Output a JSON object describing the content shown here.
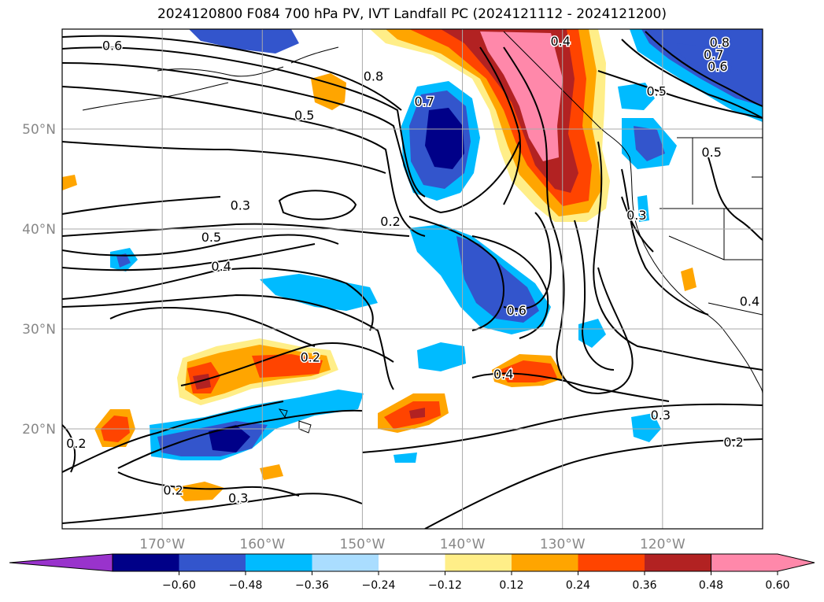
{
  "title": "2024120800 F084 700 hPa PV, IVT Landfall PC (2024121112 - 2024121200)",
  "map": {
    "projection": "equirectangular",
    "lon_range": [
      -180,
      -110
    ],
    "lat_range": [
      10,
      60
    ],
    "lon_ticks": [
      {
        "lon": -170,
        "label": "170°W"
      },
      {
        "lon": -160,
        "label": "160°W"
      },
      {
        "lon": -150,
        "label": "150°W"
      },
      {
        "lon": -140,
        "label": "140°W"
      },
      {
        "lon": -130,
        "label": "130°W"
      },
      {
        "lon": -120,
        "label": "120°W"
      }
    ],
    "lat_ticks": [
      {
        "lat": 20,
        "label": "20°N"
      },
      {
        "lat": 30,
        "label": "30°N"
      },
      {
        "lat": 40,
        "label": "40°N"
      },
      {
        "lat": 50,
        "label": "50°N"
      }
    ],
    "grid": true,
    "contour_labels": [
      {
        "text": "0.6",
        "lon": -175,
        "lat": 58.4
      },
      {
        "text": "0.8",
        "lon": -148.9,
        "lat": 55.3
      },
      {
        "text": "0.7",
        "lon": -143.8,
        "lat": 52.8
      },
      {
        "text": "0.5",
        "lon": -155.8,
        "lat": 51.4
      },
      {
        "text": "0.4",
        "lon": -130.2,
        "lat": 58.8
      },
      {
        "text": "0.8",
        "lon": -114.3,
        "lat": 58.7
      },
      {
        "text": "0.7",
        "lon": -114.9,
        "lat": 57.5
      },
      {
        "text": "0.6",
        "lon": -114.5,
        "lat": 56.3
      },
      {
        "text": "0.5",
        "lon": -120.6,
        "lat": 53.8
      },
      {
        "text": "0.5",
        "lon": -115.1,
        "lat": 47.7
      },
      {
        "text": "0.3",
        "lon": -122.6,
        "lat": 41.4
      },
      {
        "text": "0.3",
        "lon": -162.2,
        "lat": 42.4
      },
      {
        "text": "0.2",
        "lon": -147.2,
        "lat": 40.8
      },
      {
        "text": "0.5",
        "lon": -165.1,
        "lat": 39.2
      },
      {
        "text": "0.4",
        "lon": -164.1,
        "lat": 36.3
      },
      {
        "text": "0.6",
        "lon": -134.6,
        "lat": 31.9
      },
      {
        "text": "0.2",
        "lon": -155.2,
        "lat": 27.2
      },
      {
        "text": "0.4",
        "lon": -135.9,
        "lat": 25.5
      },
      {
        "text": "0.3",
        "lon": -120.2,
        "lat": 21.4
      },
      {
        "text": "0.2",
        "lon": -112.9,
        "lat": 18.7
      },
      {
        "text": "0.2",
        "lon": -178.6,
        "lat": 18.6
      },
      {
        "text": "0.2",
        "lon": -168.9,
        "lat": 13.9
      },
      {
        "text": "0.3",
        "lon": -162.4,
        "lat": 13.1
      },
      {
        "text": "0.4",
        "lon": -111.3,
        "lat": 32.8
      }
    ]
  },
  "colorbar": {
    "ticks": [
      "−0.60",
      "−0.48",
      "−0.36",
      "−0.24",
      "−0.12",
      "0.12",
      "0.24",
      "0.36",
      "0.48",
      "0.60"
    ],
    "colors": {
      "under": "#9933cc",
      "neg_060": "#000088",
      "neg_048": "#3355cc",
      "neg_036": "#00bbff",
      "neg_024": "#aaddff",
      "neutral": "#ffffff",
      "pos_012": "#ffee88",
      "pos_024": "#ffa500",
      "pos_036": "#ff4400",
      "pos_048": "#b22222",
      "over": "#ff88aa"
    }
  }
}
